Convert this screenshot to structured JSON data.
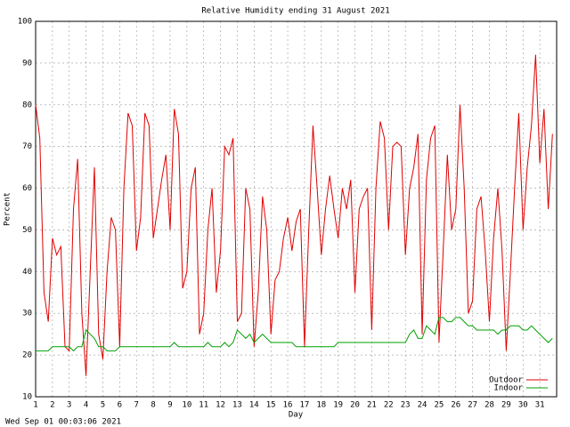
{
  "chart_data": {
    "type": "line",
    "title": "Relative Humidity ending 31 August 2021",
    "x_label": "Day",
    "y_label": "Percent",
    "footer": "Wed Sep 01 00:03:06 2021",
    "grid": true,
    "legend": "bottom right",
    "xlim": [
      1,
      32
    ],
    "ylim": [
      10,
      100
    ],
    "xticks": [
      1,
      2,
      3,
      4,
      5,
      6,
      7,
      8,
      9,
      10,
      11,
      12,
      13,
      14,
      15,
      16,
      17,
      18,
      19,
      20,
      21,
      22,
      23,
      24,
      25,
      26,
      27,
      28,
      29,
      30,
      31
    ],
    "yticks": [
      10,
      20,
      30,
      40,
      50,
      60,
      70,
      80,
      90,
      100
    ],
    "x": [
      1,
      1.25,
      1.5,
      1.75,
      2,
      2.25,
      2.5,
      2.75,
      3,
      3.25,
      3.5,
      3.75,
      4,
      4.25,
      4.5,
      4.75,
      5,
      5.25,
      5.5,
      5.75,
      6,
      6.25,
      6.5,
      6.75,
      7,
      7.25,
      7.5,
      7.75,
      8,
      8.25,
      8.5,
      8.75,
      9,
      9.25,
      9.5,
      9.75,
      10,
      10.25,
      10.5,
      10.75,
      11,
      11.25,
      11.5,
      11.75,
      12,
      12.25,
      12.5,
      12.75,
      13,
      13.25,
      13.5,
      13.75,
      14,
      14.25,
      14.5,
      14.75,
      15,
      15.25,
      15.5,
      15.75,
      16,
      16.25,
      16.5,
      16.75,
      17,
      17.25,
      17.5,
      17.75,
      18,
      18.25,
      18.5,
      18.75,
      19,
      19.25,
      19.5,
      19.75,
      20,
      20.25,
      20.5,
      20.75,
      21,
      21.25,
      21.5,
      21.75,
      22,
      22.25,
      22.5,
      22.75,
      23,
      23.25,
      23.5,
      23.75,
      24,
      24.25,
      24.5,
      24.75,
      25,
      25.25,
      25.5,
      25.75,
      26,
      26.25,
      26.5,
      26.75,
      27,
      27.25,
      27.5,
      27.75,
      28,
      28.25,
      28.5,
      28.75,
      29,
      29.25,
      29.5,
      29.75,
      30,
      30.25,
      30.5,
      30.75,
      31,
      31.25,
      31.5,
      31.75
    ],
    "series": [
      {
        "name": "Outdoor",
        "color": "#e00000",
        "values": [
          80,
          72,
          35,
          28,
          48,
          44,
          46,
          22,
          21,
          55,
          67,
          30,
          15,
          40,
          65,
          25,
          19,
          40,
          53,
          50,
          22,
          60,
          78,
          75,
          45,
          53,
          78,
          75,
          48,
          55,
          62,
          68,
          50,
          79,
          73,
          36,
          40,
          60,
          65,
          25,
          30,
          50,
          60,
          35,
          45,
          70,
          68,
          72,
          28,
          30,
          60,
          55,
          22,
          35,
          58,
          50,
          25,
          38,
          40,
          48,
          53,
          45,
          52,
          55,
          22,
          50,
          75,
          60,
          44,
          55,
          63,
          55,
          48,
          60,
          55,
          62,
          35,
          55,
          58,
          60,
          26,
          60,
          76,
          72,
          50,
          70,
          71,
          70,
          44,
          60,
          65,
          73,
          25,
          62,
          72,
          75,
          23,
          45,
          68,
          50,
          55,
          80,
          60,
          30,
          33,
          55,
          58,
          45,
          28,
          48,
          60,
          45,
          21,
          40,
          60,
          78,
          50,
          65,
          75,
          92,
          66,
          79,
          55,
          73
        ]
      },
      {
        "name": "Indoor",
        "color": "#00a000",
        "values": [
          21,
          21,
          21,
          21,
          22,
          22,
          22,
          22,
          22,
          21,
          22,
          22,
          26,
          25,
          24,
          22,
          22,
          21,
          21,
          21,
          22,
          22,
          22,
          22,
          22,
          22,
          22,
          22,
          22,
          22,
          22,
          22,
          22,
          23,
          22,
          22,
          22,
          22,
          22,
          22,
          22,
          23,
          22,
          22,
          22,
          23,
          22,
          23,
          26,
          25,
          24,
          25,
          23,
          24,
          25,
          24,
          23,
          23,
          23,
          23,
          23,
          23,
          22,
          22,
          22,
          22,
          22,
          22,
          22,
          22,
          22,
          22,
          23,
          23,
          23,
          23,
          23,
          23,
          23,
          23,
          23,
          23,
          23,
          23,
          23,
          23,
          23,
          23,
          23,
          25,
          26,
          24,
          24,
          27,
          26,
          25,
          29,
          29,
          28,
          28,
          29,
          29,
          28,
          27,
          27,
          26,
          26,
          26,
          26,
          26,
          25,
          26,
          26,
          27,
          27,
          27,
          26,
          26,
          27,
          26,
          25,
          24,
          23,
          24
        ]
      }
    ]
  }
}
